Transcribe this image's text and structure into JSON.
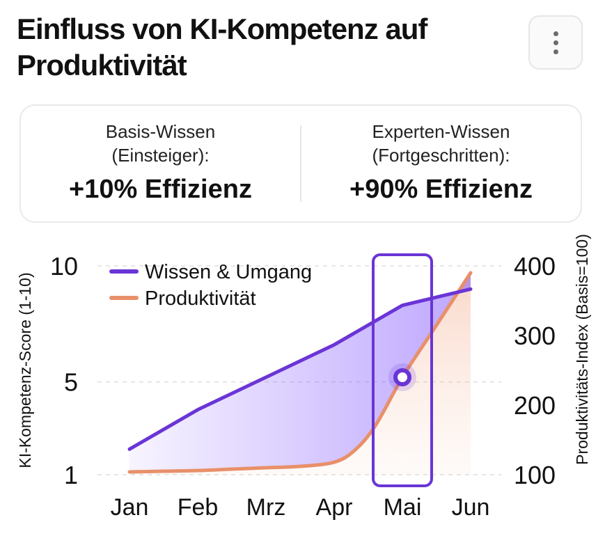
{
  "header": {
    "title_line1": "Einfluss von KI-Kompetenz auf",
    "title_line2": "Produktivität",
    "menu_icon": "vertical-dots-icon"
  },
  "stats": [
    {
      "line1": "Basis-Wissen",
      "line2": "(Einsteiger):",
      "value": "+10% Effizienz"
    },
    {
      "line1": "Experten-Wissen",
      "line2": "(Fortgeschritten):",
      "value": "+90% Effizienz"
    }
  ],
  "chart_data": {
    "type": "line",
    "categories": [
      "Jan",
      "Feb",
      "Mrz",
      "Apr",
      "Mai",
      "Jun"
    ],
    "ylabel_left": "KI-Kompetenz-Score (1-10)",
    "ylabel_right": "Produktivitäts-Index (Basis=100)",
    "y_left_ticks": [
      "10",
      "5",
      "1"
    ],
    "y_right_ticks": [
      "400",
      "300",
      "200",
      "100"
    ],
    "y_left_range": [
      1,
      10
    ],
    "y_right_range": [
      100,
      400
    ],
    "grid": "horizontal-dashed",
    "legend_position": "top-left",
    "series": [
      {
        "name": "Wissen & Umgang",
        "axis": "left",
        "color": "#6a35d6",
        "x": [
          0,
          1,
          2,
          3,
          4,
          5
        ],
        "values": [
          2.1,
          3.8,
          5.2,
          6.6,
          8.3,
          9.0
        ]
      },
      {
        "name": "Produktivität",
        "axis": "right",
        "color": "#e8906a",
        "x": [
          0,
          0.5,
          1,
          1.5,
          2,
          2.5,
          3,
          3.3,
          3.6,
          4,
          4.4,
          4.8,
          5
        ],
        "values": [
          104,
          105,
          106,
          108,
          110,
          112,
          118,
          135,
          170,
          240,
          300,
          360,
          390
        ]
      }
    ],
    "highlight": {
      "category": "Mai",
      "marker_value_right": 240,
      "color": "#6a35d6"
    }
  }
}
